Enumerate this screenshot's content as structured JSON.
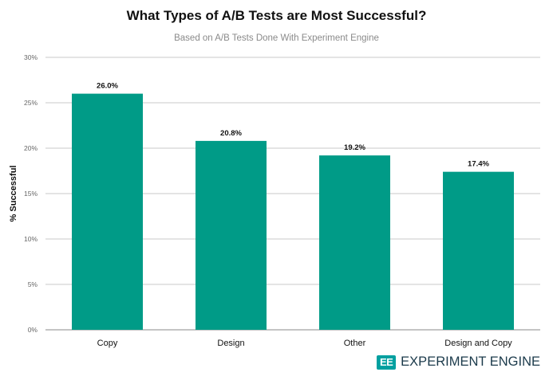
{
  "chart_data": {
    "type": "bar",
    "title": "What Types of A/B Tests are Most Successful?",
    "subtitle": "Based on A/B Tests Done With Experiment Engine",
    "ylabel": "% Successful",
    "xlabel": "",
    "categories": [
      "Copy",
      "Design",
      "Other",
      "Design and Copy"
    ],
    "values": [
      26.0,
      20.8,
      19.2,
      17.4
    ],
    "data_labels": [
      "26.0%",
      "20.8%",
      "19.2%",
      "17.4%"
    ],
    "ylim": [
      0,
      30
    ],
    "yticks": [
      0,
      5,
      10,
      15,
      20,
      25,
      30
    ],
    "ytick_labels": [
      "0%",
      "5%",
      "10%",
      "15%",
      "20%",
      "25%",
      "30%"
    ],
    "grid": true,
    "bar_color": "#009b87"
  },
  "logo": {
    "mark": "EE",
    "text": "EXPERIMENT ENGINE",
    "mark_color": "#00a0a0",
    "text_color": "#1b3a4b"
  }
}
